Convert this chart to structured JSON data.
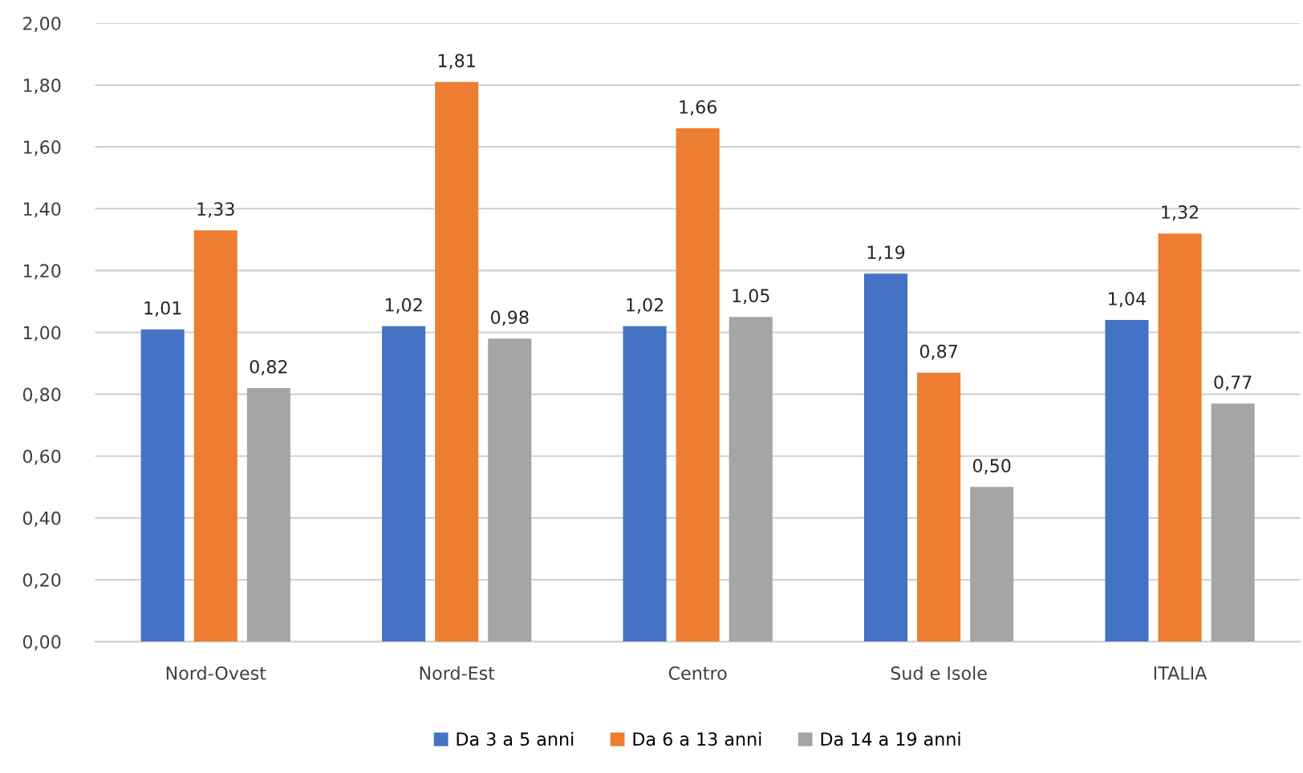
{
  "chart_data": {
    "type": "bar",
    "categories": [
      "Nord-Ovest",
      "Nord-Est",
      "Centro",
      "Sud e Isole",
      "ITALIA"
    ],
    "series": [
      {
        "name": "Da 3 a 5 anni",
        "color": "#4472c4",
        "values": [
          1.01,
          1.02,
          1.02,
          1.19,
          1.04
        ],
        "value_labels": [
          "1,01",
          "1,02",
          "1,02",
          "1,19",
          "1,04"
        ]
      },
      {
        "name": "Da 6 a 13 anni",
        "color": "#ed7d31",
        "values": [
          1.33,
          1.81,
          1.66,
          0.87,
          1.32
        ],
        "value_labels": [
          "1,33",
          "1,81",
          "1,66",
          "0,87",
          "1,32"
        ]
      },
      {
        "name": "Da 14 a 19 anni",
        "color": "#a5a5a5",
        "values": [
          0.82,
          0.98,
          1.05,
          0.5,
          0.77
        ],
        "value_labels": [
          "0,82",
          "0,98",
          "1,05",
          "0,50",
          "0,77"
        ]
      }
    ],
    "ylim": [
      0,
      2
    ],
    "yticks": [
      {
        "value": 0,
        "label": "0,00"
      },
      {
        "value": 0.2,
        "label": "0,20"
      },
      {
        "value": 0.4,
        "label": "0,40"
      },
      {
        "value": 0.6,
        "label": "0,60"
      },
      {
        "value": 0.8,
        "label": "0,80"
      },
      {
        "value": 1.0,
        "label": "1,00"
      },
      {
        "value": 1.2,
        "label": "1,20"
      },
      {
        "value": 1.4,
        "label": "1,40"
      },
      {
        "value": 1.6,
        "label": "1,60"
      },
      {
        "value": 1.8,
        "label": "1,80"
      },
      {
        "value": 2.0,
        "label": "2,00"
      }
    ],
    "grid": "y",
    "legend": "bottom"
  }
}
